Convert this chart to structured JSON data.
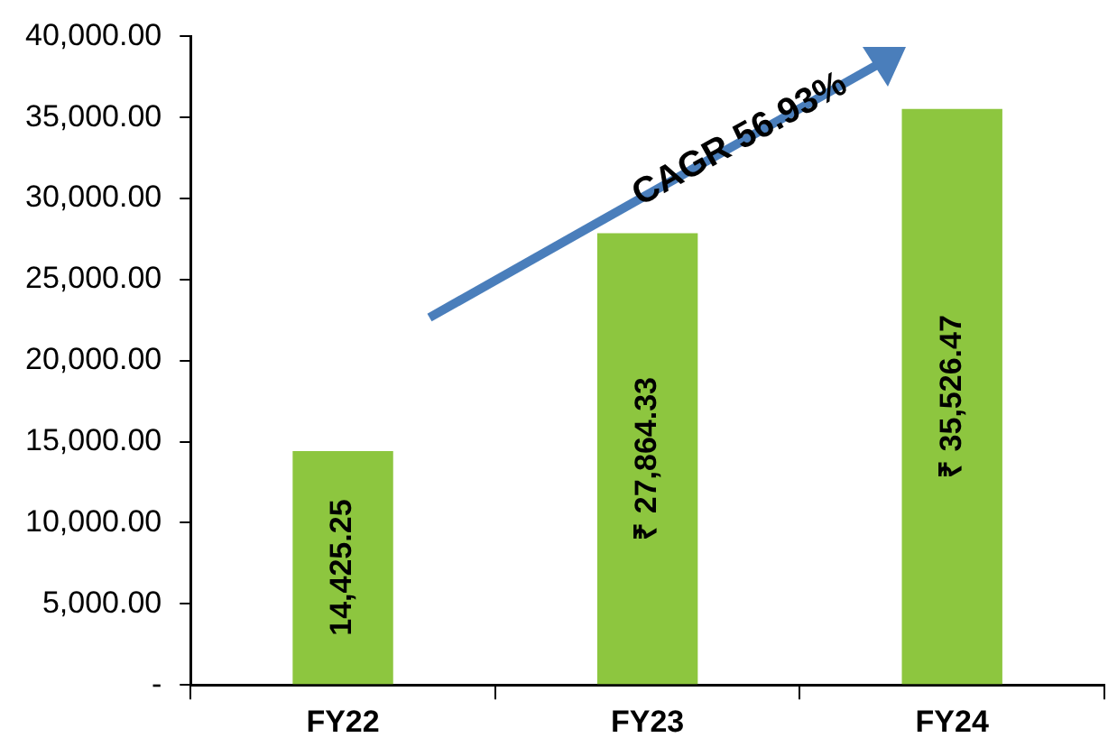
{
  "chart_data": {
    "type": "bar",
    "categories": [
      "FY22",
      "FY23",
      "FY24"
    ],
    "values": [
      14425.25,
      27864.33,
      35526.47
    ],
    "color": "#8dc63f",
    "value_labels": [
      "14,425.25",
      "₹ 27,864.33",
      "₹ 35,526.47"
    ],
    "ylim": [
      0,
      40000
    ],
    "yticks": [
      {
        "value": 0,
        "label": "-"
      },
      {
        "value": 5000,
        "label": "5,000.00"
      },
      {
        "value": 10000,
        "label": "10,000.00"
      },
      {
        "value": 15000,
        "label": "15,000.00"
      },
      {
        "value": 20000,
        "label": "20,000.00"
      },
      {
        "value": 25000,
        "label": "25,000.00"
      },
      {
        "value": 30000,
        "label": "30,000.00"
      },
      {
        "value": 35000,
        "label": "35,000.00"
      },
      {
        "value": 40000,
        "label": "40,000.00"
      }
    ],
    "grid": false,
    "legend": false,
    "annotations": [
      "CAGR 56.93%"
    ]
  }
}
